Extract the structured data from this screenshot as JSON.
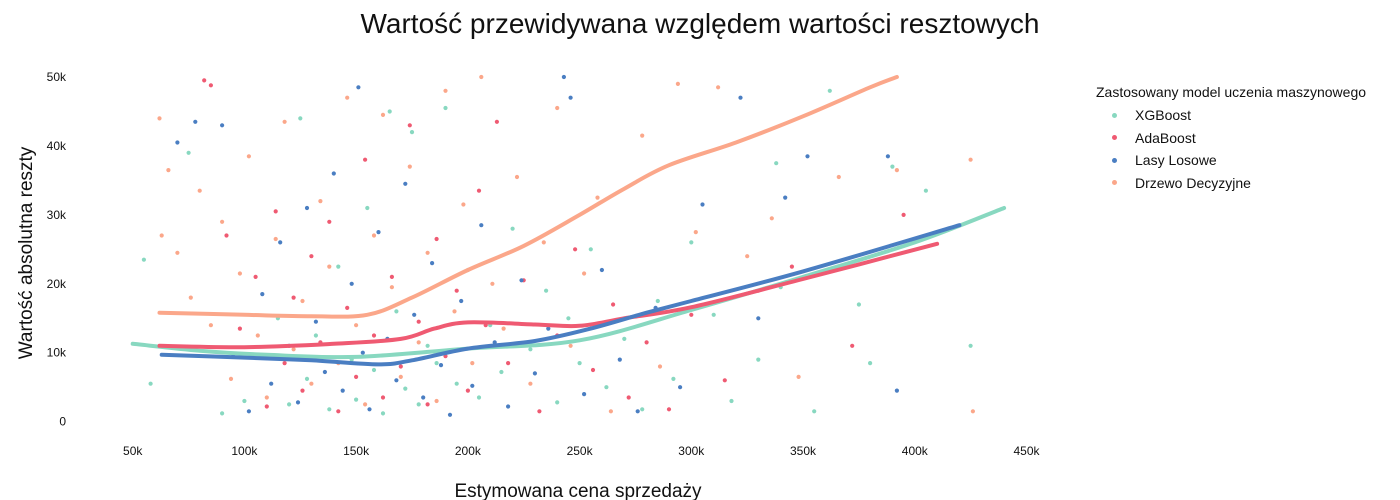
{
  "chart_data": {
    "type": "scatter",
    "title": "Wartość przewidywana względem wartości resztowych",
    "xlabel": "Estymowana cena sprzedaży",
    "ylabel": "Wartość absolutna reszty",
    "xlim": [
      30000,
      465000
    ],
    "ylim": [
      -1500,
      50000
    ],
    "x_ticks": [
      50000,
      100000,
      150000,
      200000,
      250000,
      300000,
      350000,
      400000,
      450000
    ],
    "x_tick_labels": [
      "50k",
      "100k",
      "150k",
      "200k",
      "250k",
      "300k",
      "350k",
      "400k",
      "450k"
    ],
    "y_ticks": [
      0,
      10000,
      20000,
      30000,
      40000,
      50000
    ],
    "y_tick_labels": [
      "0",
      "10k",
      "20k",
      "30k",
      "40k",
      "50k"
    ],
    "grid": false,
    "legend_title": "Zastosowany model uczenia maszynowego",
    "legend_position": "top-right",
    "series": [
      {
        "name": "XGBoost",
        "color": "#88d8c0",
        "trend": [
          [
            50000,
            11300
          ],
          [
            80000,
            10300
          ],
          [
            110000,
            9700
          ],
          [
            150000,
            9400
          ],
          [
            200000,
            10600
          ],
          [
            250000,
            11800
          ],
          [
            300000,
            16200
          ],
          [
            350000,
            21000
          ],
          [
            400000,
            26000
          ],
          [
            440000,
            31000
          ]
        ],
        "points": [
          [
            55000,
            23500
          ],
          [
            58000,
            5500
          ],
          [
            75000,
            39000
          ],
          [
            90000,
            1200
          ],
          [
            100000,
            3000
          ],
          [
            115000,
            15000
          ],
          [
            120000,
            2500
          ],
          [
            125000,
            44000
          ],
          [
            128000,
            6200
          ],
          [
            132000,
            12500
          ],
          [
            138000,
            1800
          ],
          [
            142000,
            22500
          ],
          [
            148000,
            9000
          ],
          [
            150000,
            3200
          ],
          [
            155000,
            31000
          ],
          [
            158000,
            7500
          ],
          [
            162000,
            1200
          ],
          [
            165000,
            45000
          ],
          [
            168000,
            16000
          ],
          [
            172000,
            4800
          ],
          [
            175000,
            42000
          ],
          [
            178000,
            2500
          ],
          [
            182000,
            11000
          ],
          [
            186000,
            8500
          ],
          [
            190000,
            45500
          ],
          [
            195000,
            5500
          ],
          [
            200000,
            22000
          ],
          [
            205000,
            3500
          ],
          [
            210000,
            14000
          ],
          [
            215000,
            7200
          ],
          [
            220000,
            28000
          ],
          [
            228000,
            10500
          ],
          [
            235000,
            19000
          ],
          [
            240000,
            2800
          ],
          [
            245000,
            15000
          ],
          [
            250000,
            8500
          ],
          [
            255000,
            25000
          ],
          [
            262000,
            5000
          ],
          [
            270000,
            12000
          ],
          [
            278000,
            1800
          ],
          [
            285000,
            17500
          ],
          [
            292000,
            6200
          ],
          [
            300000,
            26000
          ],
          [
            310000,
            15500
          ],
          [
            318000,
            3000
          ],
          [
            330000,
            9000
          ],
          [
            338000,
            37500
          ],
          [
            340000,
            19500
          ],
          [
            355000,
            1500
          ],
          [
            362000,
            48000
          ],
          [
            375000,
            17000
          ],
          [
            380000,
            8500
          ],
          [
            390000,
            37000
          ],
          [
            405000,
            33500
          ],
          [
            425000,
            11000
          ]
        ]
      },
      {
        "name": "AdaBoost",
        "color": "#ef5a72",
        "trend": [
          [
            62000,
            11000
          ],
          [
            100000,
            10800
          ],
          [
            140000,
            11300
          ],
          [
            170000,
            12000
          ],
          [
            185000,
            13500
          ],
          [
            200000,
            14400
          ],
          [
            230000,
            14100
          ],
          [
            250000,
            13900
          ],
          [
            270000,
            15000
          ],
          [
            300000,
            16600
          ],
          [
            350000,
            20700
          ],
          [
            410000,
            25800
          ]
        ],
        "points": [
          [
            82000,
            49500
          ],
          [
            85000,
            48800
          ],
          [
            92000,
            27000
          ],
          [
            98000,
            13500
          ],
          [
            105000,
            21000
          ],
          [
            110000,
            2200
          ],
          [
            114000,
            30500
          ],
          [
            118000,
            8500
          ],
          [
            122000,
            18000
          ],
          [
            126000,
            4500
          ],
          [
            130000,
            24000
          ],
          [
            134000,
            11500
          ],
          [
            138000,
            29000
          ],
          [
            142000,
            1500
          ],
          [
            146000,
            16500
          ],
          [
            150000,
            6500
          ],
          [
            154000,
            38000
          ],
          [
            158000,
            12500
          ],
          [
            162000,
            3500
          ],
          [
            166000,
            21000
          ],
          [
            170000,
            8000
          ],
          [
            174000,
            43000
          ],
          [
            178000,
            14500
          ],
          [
            182000,
            2500
          ],
          [
            186000,
            26500
          ],
          [
            190000,
            9500
          ],
          [
            195000,
            19000
          ],
          [
            200000,
            4500
          ],
          [
            205000,
            33500
          ],
          [
            208000,
            14000
          ],
          [
            213000,
            43500
          ],
          [
            218000,
            8500
          ],
          [
            225000,
            20500
          ],
          [
            232000,
            1500
          ],
          [
            240000,
            12500
          ],
          [
            248000,
            25000
          ],
          [
            256000,
            7500
          ],
          [
            265000,
            17000
          ],
          [
            272000,
            3500
          ],
          [
            280000,
            11500
          ],
          [
            290000,
            1800
          ],
          [
            300000,
            15500
          ],
          [
            315000,
            6000
          ],
          [
            330000,
            19000
          ],
          [
            345000,
            22500
          ],
          [
            372000,
            11000
          ],
          [
            395000,
            30000
          ]
        ]
      },
      {
        "name": "Lasy Losowe",
        "color": "#4a7ec2",
        "trend": [
          [
            63000,
            9700
          ],
          [
            100000,
            9300
          ],
          [
            130000,
            8900
          ],
          [
            160000,
            8300
          ],
          [
            175000,
            8900
          ],
          [
            200000,
            10600
          ],
          [
            230000,
            11700
          ],
          [
            255000,
            13500
          ],
          [
            280000,
            15800
          ],
          [
            300000,
            17500
          ],
          [
            350000,
            21800
          ],
          [
            420000,
            28500
          ]
        ],
        "points": [
          [
            70000,
            40500
          ],
          [
            78000,
            43500
          ],
          [
            90000,
            43000
          ],
          [
            95000,
            9500
          ],
          [
            102000,
            1500
          ],
          [
            108000,
            18500
          ],
          [
            112000,
            5500
          ],
          [
            116000,
            26000
          ],
          [
            120000,
            11000
          ],
          [
            124000,
            2800
          ],
          [
            128000,
            31000
          ],
          [
            132000,
            14500
          ],
          [
            136000,
            7200
          ],
          [
            140000,
            36000
          ],
          [
            144000,
            4500
          ],
          [
            148000,
            20000
          ],
          [
            151000,
            48500
          ],
          [
            153000,
            10000
          ],
          [
            156000,
            1800
          ],
          [
            160000,
            27500
          ],
          [
            164000,
            12000
          ],
          [
            168000,
            6000
          ],
          [
            172000,
            34500
          ],
          [
            176000,
            15500
          ],
          [
            180000,
            3500
          ],
          [
            184000,
            23000
          ],
          [
            188000,
            8200
          ],
          [
            192000,
            1000
          ],
          [
            197000,
            17500
          ],
          [
            202000,
            5200
          ],
          [
            206000,
            28500
          ],
          [
            212000,
            11500
          ],
          [
            218000,
            2200
          ],
          [
            224000,
            20500
          ],
          [
            230000,
            7000
          ],
          [
            236000,
            13500
          ],
          [
            243000,
            50000
          ],
          [
            246000,
            47000
          ],
          [
            252000,
            4000
          ],
          [
            260000,
            22000
          ],
          [
            268000,
            9000
          ],
          [
            276000,
            1500
          ],
          [
            284000,
            16500
          ],
          [
            295000,
            5000
          ],
          [
            305000,
            31500
          ],
          [
            322000,
            47000
          ],
          [
            330000,
            15000
          ],
          [
            342000,
            32500
          ],
          [
            352000,
            38500
          ],
          [
            388000,
            38500
          ],
          [
            392000,
            4500
          ]
        ]
      },
      {
        "name": "Drzewo Decyzyjne",
        "color": "#fba78a",
        "trend": [
          [
            62000,
            15800
          ],
          [
            100000,
            15500
          ],
          [
            130000,
            15300
          ],
          [
            155000,
            15500
          ],
          [
            175000,
            18000
          ],
          [
            200000,
            22000
          ],
          [
            225000,
            25500
          ],
          [
            250000,
            30000
          ],
          [
            270000,
            33800
          ],
          [
            290000,
            37200
          ],
          [
            320000,
            40500
          ],
          [
            350000,
            44300
          ],
          [
            380000,
            48500
          ],
          [
            392000,
            50000
          ]
        ],
        "points": [
          [
            62000,
            44000
          ],
          [
            63000,
            27000
          ],
          [
            66000,
            36500
          ],
          [
            70000,
            24500
          ],
          [
            76000,
            18000
          ],
          [
            80000,
            33500
          ],
          [
            85000,
            14000
          ],
          [
            90000,
            29000
          ],
          [
            94000,
            6200
          ],
          [
            98000,
            21500
          ],
          [
            102000,
            38500
          ],
          [
            106000,
            12500
          ],
          [
            110000,
            3500
          ],
          [
            114000,
            26500
          ],
          [
            118000,
            43500
          ],
          [
            122000,
            10500
          ],
          [
            126000,
            17500
          ],
          [
            130000,
            5500
          ],
          [
            134000,
            32000
          ],
          [
            138000,
            22500
          ],
          [
            142000,
            8500
          ],
          [
            146000,
            47000
          ],
          [
            150000,
            14000
          ],
          [
            154000,
            2500
          ],
          [
            158000,
            27000
          ],
          [
            162000,
            44500
          ],
          [
            166000,
            19500
          ],
          [
            170000,
            6500
          ],
          [
            174000,
            37000
          ],
          [
            178000,
            11500
          ],
          [
            182000,
            24500
          ],
          [
            186000,
            3000
          ],
          [
            190000,
            48000
          ],
          [
            194000,
            16000
          ],
          [
            198000,
            31500
          ],
          [
            202000,
            8500
          ],
          [
            206000,
            50000
          ],
          [
            211000,
            20000
          ],
          [
            216000,
            13500
          ],
          [
            222000,
            35500
          ],
          [
            228000,
            5500
          ],
          [
            234000,
            26000
          ],
          [
            240000,
            45500
          ],
          [
            246000,
            11000
          ],
          [
            252000,
            21500
          ],
          [
            258000,
            32500
          ],
          [
            264000,
            1500
          ],
          [
            270000,
            15000
          ],
          [
            278000,
            41500
          ],
          [
            286000,
            8000
          ],
          [
            294000,
            49000
          ],
          [
            302000,
            27500
          ],
          [
            312000,
            48500
          ],
          [
            325000,
            24000
          ],
          [
            336000,
            29500
          ],
          [
            348000,
            6500
          ],
          [
            366000,
            35500
          ],
          [
            392000,
            36500
          ],
          [
            425000,
            38000
          ],
          [
            426000,
            1500
          ]
        ]
      }
    ]
  }
}
